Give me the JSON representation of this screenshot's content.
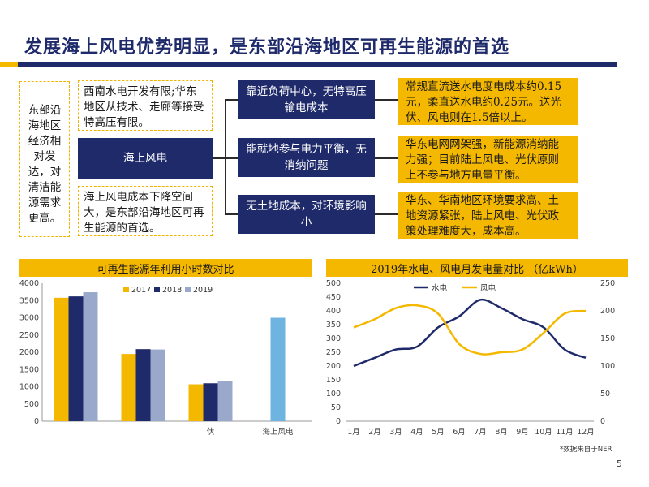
{
  "slide": {
    "title": "发展海上风电优势明显，是东部沿海地区可再生能源的首选",
    "page_number": "5",
    "note": "*数据来自于NER"
  },
  "diagram": {
    "left_box": "东部沿海地区经济相对发达，对清洁能源需求更高。",
    "top_box": "西南水电开发有限;华东地区从技术、走廊等接受特高压有限。",
    "center_box": "海上风电",
    "bottom_box": "海上风电成本下降空间大，是东部沿海地区可再生能源的首选。",
    "advantages": [
      {
        "label": "靠近负荷中心，无特高压输电成本",
        "detail": "常规直流送水电度电成本约0.15元，柔直送水电约0.25元。送光伏、风电则在1.5倍以上。"
      },
      {
        "label": "能就地参与电力平衡，无消纳问题",
        "detail": "华东电网网架强，新能源消纳能力强；目前陆上风电、光伏原则上不参与地方电量平衡。"
      },
      {
        "label": "无土地成本，对环境影响小",
        "detail": "华东、华南地区环境要求高、土地资源紧张，陆上风电、光伏政策处理难度大，成本高。"
      }
    ]
  },
  "chart_data": [
    {
      "type": "bar",
      "title": "可再生能源年利用小时数对比",
      "categories": [
        "",
        "",
        "伏",
        "海上风电"
      ],
      "series": [
        {
          "name": "2017",
          "color": "#f5b800",
          "values": [
            3580,
            1950,
            1070,
            null
          ]
        },
        {
          "name": "2018",
          "color": "#1f2a6b",
          "values": [
            3620,
            2090,
            1100,
            null
          ]
        },
        {
          "name": "2019",
          "color": "#9aa8cc",
          "values": [
            3740,
            2080,
            1160,
            null
          ]
        },
        {
          "name": "",
          "color": "#6fb3e0",
          "values": [
            null,
            null,
            null,
            3000
          ]
        }
      ],
      "ylim": [
        0,
        4000
      ],
      "yticks": [
        0,
        500,
        1000,
        1500,
        2000,
        2500,
        3000,
        3500,
        4000
      ],
      "legend": "top"
    },
    {
      "type": "line",
      "title": "2019年水电、风电月发电量对比 （亿kWh）",
      "categories": [
        "1月",
        "2月",
        "3月",
        "4月",
        "5月",
        "6月",
        "7月",
        "8月",
        "9月",
        "10月",
        "11月",
        "12月"
      ],
      "series": [
        {
          "name": "水电",
          "axis": "left",
          "color": "#1f2a6b",
          "values": [
            200,
            230,
            260,
            270,
            340,
            380,
            440,
            410,
            370,
            340,
            260,
            230
          ]
        },
        {
          "name": "风电",
          "axis": "right",
          "color": "#f5b800",
          "values": [
            170,
            185,
            205,
            210,
            195,
            140,
            122,
            125,
            130,
            160,
            195,
            200
          ]
        }
      ],
      "ylim_left": [
        0,
        500
      ],
      "yticks_left": [
        0,
        50,
        100,
        150,
        200,
        250,
        300,
        350,
        400,
        450,
        500
      ],
      "ylim_right": [
        0,
        250
      ],
      "yticks_right": [
        0,
        50,
        100,
        150,
        200,
        250
      ],
      "legend": "top"
    }
  ]
}
